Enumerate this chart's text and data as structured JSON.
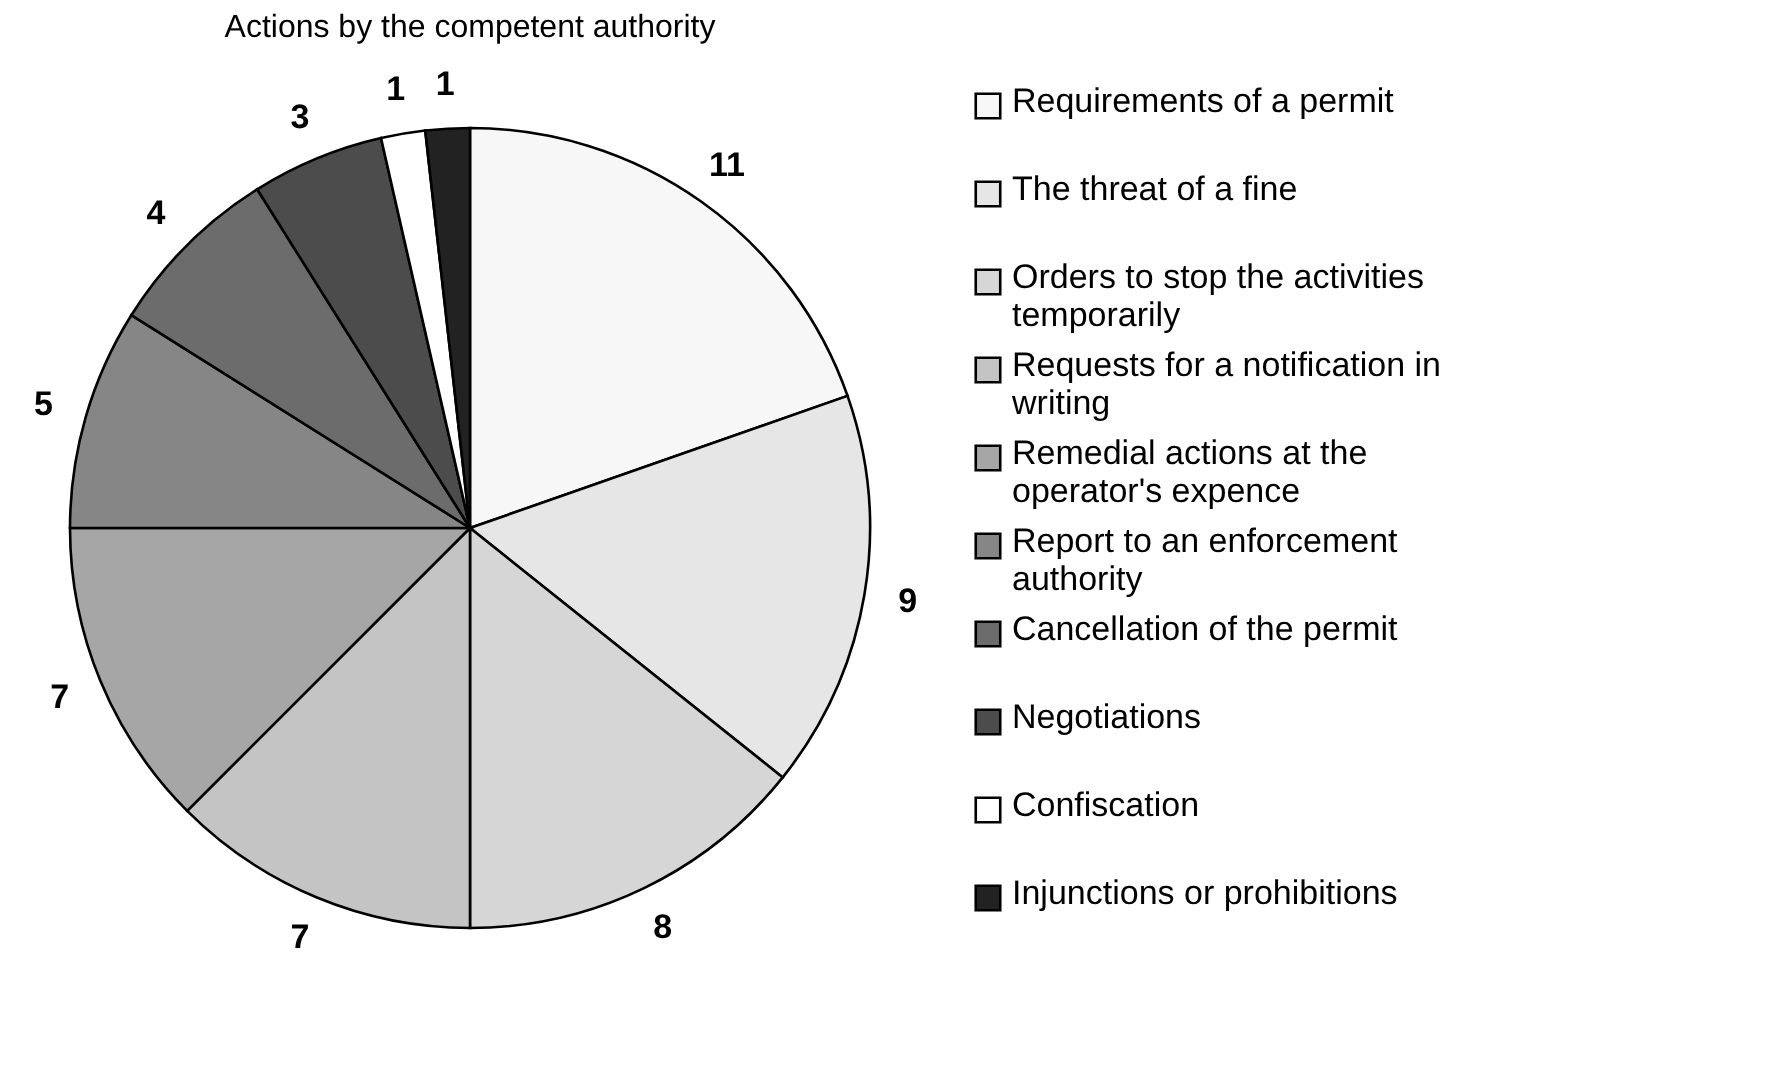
{
  "chart_data": {
    "type": "pie",
    "title": "Actions by the competent authority",
    "categories": [
      "Requirements of a permit",
      "The threat of a fine",
      "Orders to stop the activities temporarily",
      "Requests for a notification in writing",
      "Remedial actions at the operator's expence",
      "Report to an enforcement authority",
      "Cancellation of the permit",
      "Negotiations",
      "Confiscation",
      "Injunctions or prohibitions"
    ],
    "values": [
      11,
      9,
      8,
      7,
      7,
      5,
      4,
      3,
      1,
      1
    ],
    "colors": [
      "#f7f7f7",
      "#e6e6e6",
      "#d6d6d6",
      "#c4c4c4",
      "#a6a6a6",
      "#868686",
      "#6c6c6c",
      "#4c4c4c",
      "#ffffff",
      "#222222"
    ],
    "data_labels": true,
    "legend": "right"
  }
}
